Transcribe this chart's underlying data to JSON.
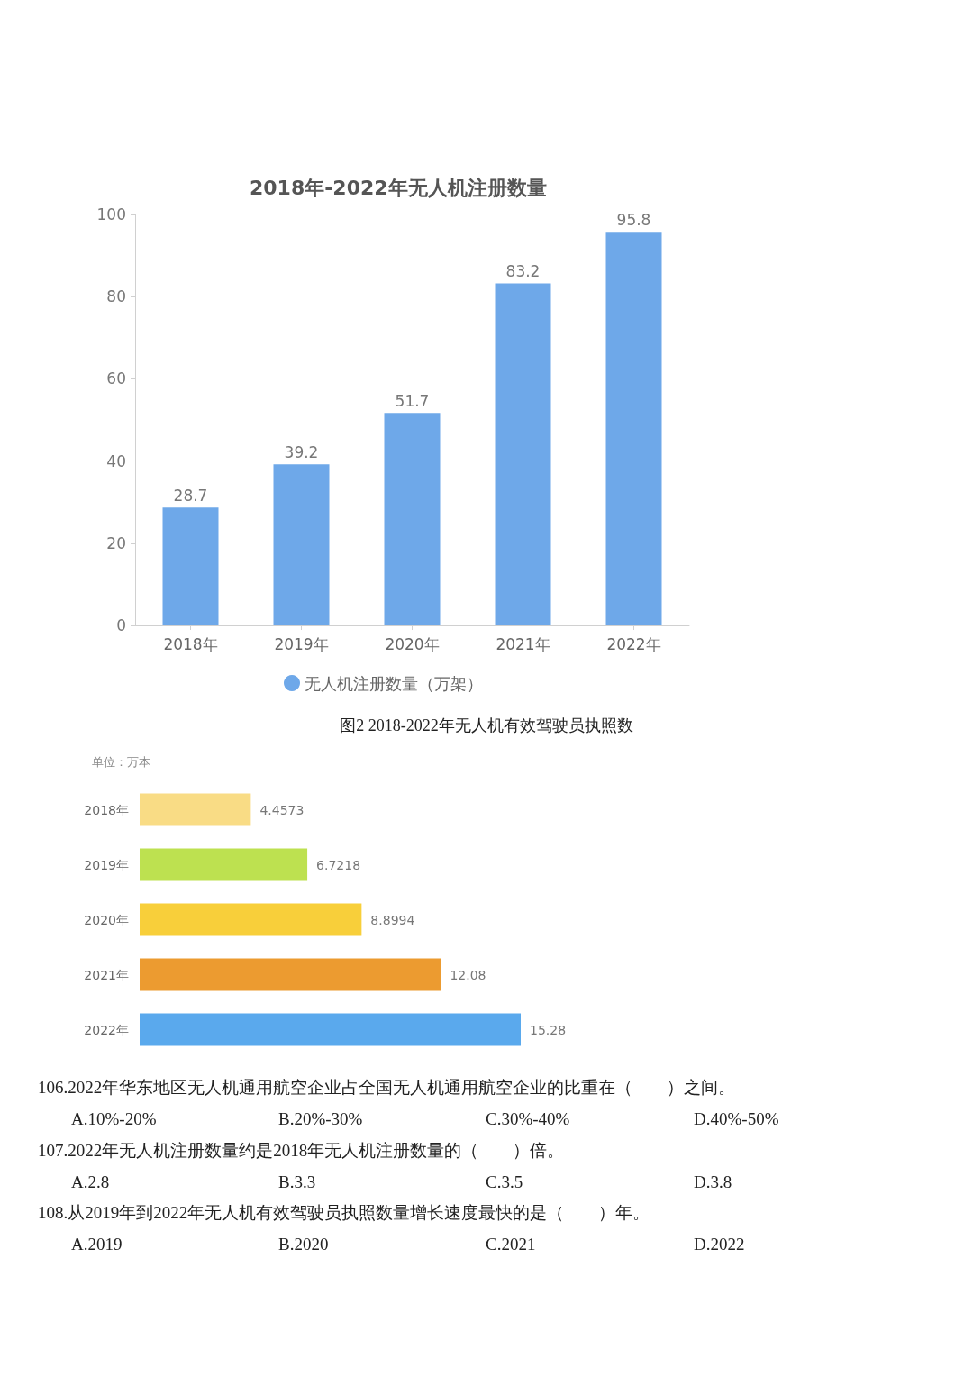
{
  "chart_data": [
    {
      "type": "bar",
      "title": "2018年-2022年无人机注册数量",
      "categories": [
        "2018年",
        "2019年",
        "2020年",
        "2021年",
        "2022年"
      ],
      "series": [
        {
          "name": "无人机注册数量（万架）",
          "color": "#6ea8e9",
          "values": [
            28.7,
            39.2,
            51.7,
            83.2,
            95.8
          ]
        }
      ],
      "ylim": [
        0,
        100
      ],
      "yticks": [
        0,
        20,
        40,
        60,
        80,
        100
      ],
      "data_labels": true,
      "legend": "bottom"
    },
    {
      "type": "bar",
      "orientation": "horizontal",
      "title": "图2 2018-2022年无人机有效驾驶员执照数",
      "subtitle": "单位：万本",
      "categories": [
        "2018年",
        "2019年",
        "2020年",
        "2021年",
        "2022年"
      ],
      "values": [
        4.4573,
        6.7218,
        8.8994,
        12.08,
        15.28
      ],
      "colors": [
        "#f9dc85",
        "#bde150",
        "#f8cf3a",
        "#ec9b30",
        "#5aa9ed"
      ],
      "data_labels": true,
      "tick_labels": "y"
    },
    {
      "type": "other",
      "annotations": [
        "106.2022年华东地区无人机通用航空企业占全国无人机通用航空企业的比重在（　　）之间。",
        "A.10%-20%",
        "B.20%-30%",
        "C.30%-40%",
        "D.40%-50%",
        "107.2022年无人机注册数量约是2018年无人机注册数量的（　　）倍。",
        "A.2.8",
        "B.3.3",
        "C.3.5",
        "D.3.8",
        "108.从2019年到2022年无人机有效驾驶员执照数量增长速度最快的是（　　）年。",
        "A.2019",
        "B.2020",
        "C.2021",
        "D.2022"
      ]
    }
  ]
}
